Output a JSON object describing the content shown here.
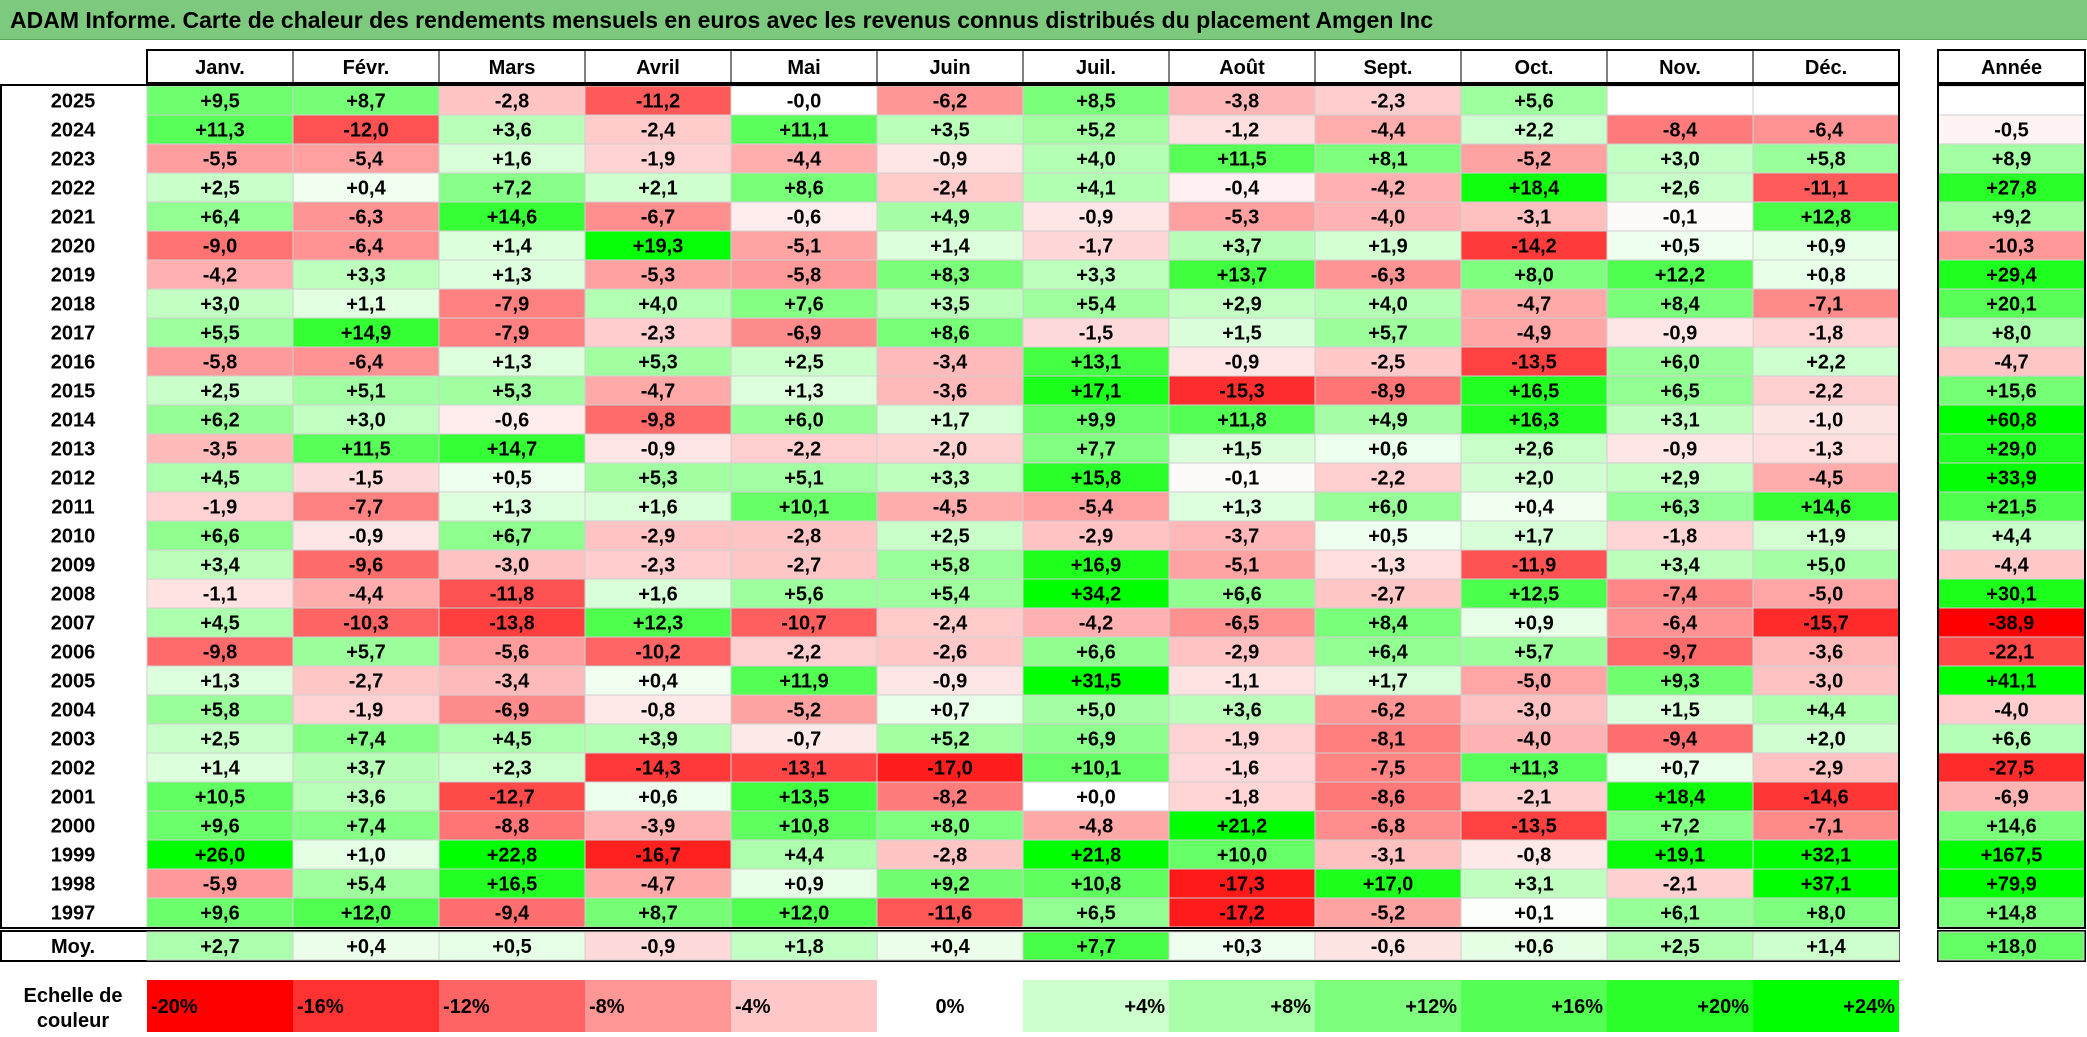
{
  "title": "ADAM Informe. Carte de chaleur des rendements mensuels en euros avec les revenus connus distribués du placement Amgen Inc",
  "chart_data": {
    "type": "heatmap",
    "title": "ADAM Informe. Carte de chaleur des rendements mensuels en euros avec les revenus connus distribués du placement Amgen Inc",
    "months": [
      "Janv.",
      "Févr.",
      "Mars",
      "Avril",
      "Mai",
      "Juin",
      "Juil.",
      "Août",
      "Sept.",
      "Oct.",
      "Nov.",
      "Déc."
    ],
    "annual_header": "Année",
    "rows": [
      {
        "year": "2025",
        "values": [
          "+9,5",
          "+8,7",
          "-2,8",
          "-11,2",
          "-0,0",
          "-6,2",
          "+8,5",
          "-3,8",
          "-2,3",
          "+5,6",
          "",
          ""
        ],
        "annual": ""
      },
      {
        "year": "2024",
        "values": [
          "+11,3",
          "-12,0",
          "+3,6",
          "-2,4",
          "+11,1",
          "+3,5",
          "+5,2",
          "-1,2",
          "-4,4",
          "+2,2",
          "-8,4",
          "-6,4"
        ],
        "annual": "-0,5"
      },
      {
        "year": "2023",
        "values": [
          "-5,5",
          "-5,4",
          "+1,6",
          "-1,9",
          "-4,4",
          "-0,9",
          "+4,0",
          "+11,5",
          "+8,1",
          "-5,2",
          "+3,0",
          "+5,8"
        ],
        "annual": "+8,9"
      },
      {
        "year": "2022",
        "values": [
          "+2,5",
          "+0,4",
          "+7,2",
          "+2,1",
          "+8,6",
          "-2,4",
          "+4,1",
          "-0,4",
          "-4,2",
          "+18,4",
          "+2,6",
          "-11,1"
        ],
        "annual": "+27,8"
      },
      {
        "year": "2021",
        "values": [
          "+6,4",
          "-6,3",
          "+14,6",
          "-6,7",
          "-0,6",
          "+4,9",
          "-0,9",
          "-5,3",
          "-4,0",
          "-3,1",
          "-0,1",
          "+12,8"
        ],
        "annual": "+9,2"
      },
      {
        "year": "2020",
        "values": [
          "-9,0",
          "-6,4",
          "+1,4",
          "+19,3",
          "-5,1",
          "+1,4",
          "-1,7",
          "+3,7",
          "+1,9",
          "-14,2",
          "+0,5",
          "+0,9"
        ],
        "annual": "-10,3"
      },
      {
        "year": "2019",
        "values": [
          "-4,2",
          "+3,3",
          "+1,3",
          "-5,3",
          "-5,8",
          "+8,3",
          "+3,3",
          "+13,7",
          "-6,3",
          "+8,0",
          "+12,2",
          "+0,8"
        ],
        "annual": "+29,4"
      },
      {
        "year": "2018",
        "values": [
          "+3,0",
          "+1,1",
          "-7,9",
          "+4,0",
          "+7,6",
          "+3,5",
          "+5,4",
          "+2,9",
          "+4,0",
          "-4,7",
          "+8,4",
          "-7,1"
        ],
        "annual": "+20,1"
      },
      {
        "year": "2017",
        "values": [
          "+5,5",
          "+14,9",
          "-7,9",
          "-2,3",
          "-6,9",
          "+8,6",
          "-1,5",
          "+1,5",
          "+5,7",
          "-4,9",
          "-0,9",
          "-1,8"
        ],
        "annual": "+8,0"
      },
      {
        "year": "2016",
        "values": [
          "-5,8",
          "-6,4",
          "+1,3",
          "+5,3",
          "+2,5",
          "-3,4",
          "+13,1",
          "-0,9",
          "-2,5",
          "-13,5",
          "+6,0",
          "+2,2"
        ],
        "annual": "-4,7"
      },
      {
        "year": "2015",
        "values": [
          "+2,5",
          "+5,1",
          "+5,3",
          "-4,7",
          "+1,3",
          "-3,6",
          "+17,1",
          "-15,3",
          "-8,9",
          "+16,5",
          "+6,5",
          "-2,2"
        ],
        "annual": "+15,6"
      },
      {
        "year": "2014",
        "values": [
          "+6,2",
          "+3,0",
          "-0,6",
          "-9,8",
          "+6,0",
          "+1,7",
          "+9,9",
          "+11,8",
          "+4,9",
          "+16,3",
          "+3,1",
          "-1,0"
        ],
        "annual": "+60,8"
      },
      {
        "year": "2013",
        "values": [
          "-3,5",
          "+11,5",
          "+14,7",
          "-0,9",
          "-2,2",
          "-2,0",
          "+7,7",
          "+1,5",
          "+0,6",
          "+2,6",
          "-0,9",
          "-1,3"
        ],
        "annual": "+29,0"
      },
      {
        "year": "2012",
        "values": [
          "+4,5",
          "-1,5",
          "+0,5",
          "+5,3",
          "+5,1",
          "+3,3",
          "+15,8",
          "-0,1",
          "-2,2",
          "+2,0",
          "+2,9",
          "-4,5"
        ],
        "annual": "+33,9"
      },
      {
        "year": "2011",
        "values": [
          "-1,9",
          "-7,7",
          "+1,3",
          "+1,6",
          "+10,1",
          "-4,5",
          "-5,4",
          "+1,3",
          "+6,0",
          "+0,4",
          "+6,3",
          "+14,6"
        ],
        "annual": "+21,5"
      },
      {
        "year": "2010",
        "values": [
          "+6,6",
          "-0,9",
          "+6,7",
          "-2,9",
          "-2,8",
          "+2,5",
          "-2,9",
          "-3,7",
          "+0,5",
          "+1,7",
          "-1,8",
          "+1,9"
        ],
        "annual": "+4,4"
      },
      {
        "year": "2009",
        "values": [
          "+3,4",
          "-9,6",
          "-3,0",
          "-2,3",
          "-2,7",
          "+5,8",
          "+16,9",
          "-5,1",
          "-1,3",
          "-11,9",
          "+3,4",
          "+5,0"
        ],
        "annual": "-4,4"
      },
      {
        "year": "2008",
        "values": [
          "-1,1",
          "-4,4",
          "-11,8",
          "+1,6",
          "+5,6",
          "+5,4",
          "+34,2",
          "+6,6",
          "-2,7",
          "+12,5",
          "-7,4",
          "-5,0"
        ],
        "annual": "+30,1"
      },
      {
        "year": "2007",
        "values": [
          "+4,5",
          "-10,3",
          "-13,8",
          "+12,3",
          "-10,7",
          "-2,4",
          "-4,2",
          "-6,5",
          "+8,4",
          "+0,9",
          "-6,4",
          "-15,7"
        ],
        "annual": "-38,9"
      },
      {
        "year": "2006",
        "values": [
          "-9,8",
          "+5,7",
          "-5,6",
          "-10,2",
          "-2,2",
          "-2,6",
          "+6,6",
          "-2,9",
          "+6,4",
          "+5,7",
          "-9,7",
          "-3,6"
        ],
        "annual": "-22,1"
      },
      {
        "year": "2005",
        "values": [
          "+1,3",
          "-2,7",
          "-3,4",
          "+0,4",
          "+11,9",
          "-0,9",
          "+31,5",
          "-1,1",
          "+1,7",
          "-5,0",
          "+9,3",
          "-3,0"
        ],
        "annual": "+41,1"
      },
      {
        "year": "2004",
        "values": [
          "+5,8",
          "-1,9",
          "-6,9",
          "-0,8",
          "-5,2",
          "+0,7",
          "+5,0",
          "+3,6",
          "-6,2",
          "-3,0",
          "+1,5",
          "+4,4"
        ],
        "annual": "-4,0"
      },
      {
        "year": "2003",
        "values": [
          "+2,5",
          "+7,4",
          "+4,5",
          "+3,9",
          "-0,7",
          "+5,2",
          "+6,9",
          "-1,9",
          "-8,1",
          "-4,0",
          "-9,4",
          "+2,0"
        ],
        "annual": "+6,6"
      },
      {
        "year": "2002",
        "values": [
          "+1,4",
          "+3,7",
          "+2,3",
          "-14,3",
          "-13,1",
          "-17,0",
          "+10,1",
          "-1,6",
          "-7,5",
          "+11,3",
          "+0,7",
          "-2,9"
        ],
        "annual": "-27,5"
      },
      {
        "year": "2001",
        "values": [
          "+10,5",
          "+3,6",
          "-12,7",
          "+0,6",
          "+13,5",
          "-8,2",
          "+0,0",
          "-1,8",
          "-8,6",
          "-2,1",
          "+18,4",
          "-14,6"
        ],
        "annual": "-6,9"
      },
      {
        "year": "2000",
        "values": [
          "+9,6",
          "+7,4",
          "-8,8",
          "-3,9",
          "+10,8",
          "+8,0",
          "-4,8",
          "+21,2",
          "-6,8",
          "-13,5",
          "+7,2",
          "-7,1"
        ],
        "annual": "+14,6"
      },
      {
        "year": "1999",
        "values": [
          "+26,0",
          "+1,0",
          "+22,8",
          "-16,7",
          "+4,4",
          "-2,8",
          "+21,8",
          "+10,0",
          "-3,1",
          "-0,8",
          "+19,1",
          "+32,1"
        ],
        "annual": "+167,5"
      },
      {
        "year": "1998",
        "values": [
          "-5,9",
          "+5,4",
          "+16,5",
          "-4,7",
          "+0,9",
          "+9,2",
          "+10,8",
          "-17,3",
          "+17,0",
          "+3,1",
          "-2,1",
          "+37,1"
        ],
        "annual": "+79,9"
      },
      {
        "year": "1997",
        "values": [
          "+9,6",
          "+12,0",
          "-9,4",
          "+8,7",
          "+12,0",
          "-11,6",
          "+6,5",
          "-17,2",
          "-5,2",
          "+0,1",
          "+6,1",
          "+8,0"
        ],
        "annual": "+14,8"
      }
    ],
    "average": {
      "label": "Moy.",
      "values": [
        "+2,7",
        "+0,4",
        "+0,5",
        "-0,9",
        "+1,8",
        "+0,4",
        "+7,7",
        "+0,3",
        "-0,6",
        "+0,6",
        "+2,5",
        "+1,4"
      ],
      "annual": "+18,0"
    },
    "scale": {
      "label_line1": "Echelle de",
      "label_line2": "couleur",
      "steps": [
        "-20%",
        "-16%",
        "-12%",
        "-8%",
        "-4%",
        "0%",
        "+4%",
        "+8%",
        "+12%",
        "+16%",
        "+20%",
        "+24%"
      ],
      "colors": [
        "#ff0000",
        "#ff3232",
        "#ff6464",
        "#ff9696",
        "#ffc8c8",
        "#ffffff",
        "#ccffcc",
        "#a8ffa8",
        "#7dff7d",
        "#55ff55",
        "#2aff2a",
        "#00ff00"
      ]
    },
    "colors": {
      "negative_max": "#ff0000",
      "neutral": "#ffffff",
      "positive_max": "#00ff00",
      "title_bar": "#7dc97d"
    }
  }
}
